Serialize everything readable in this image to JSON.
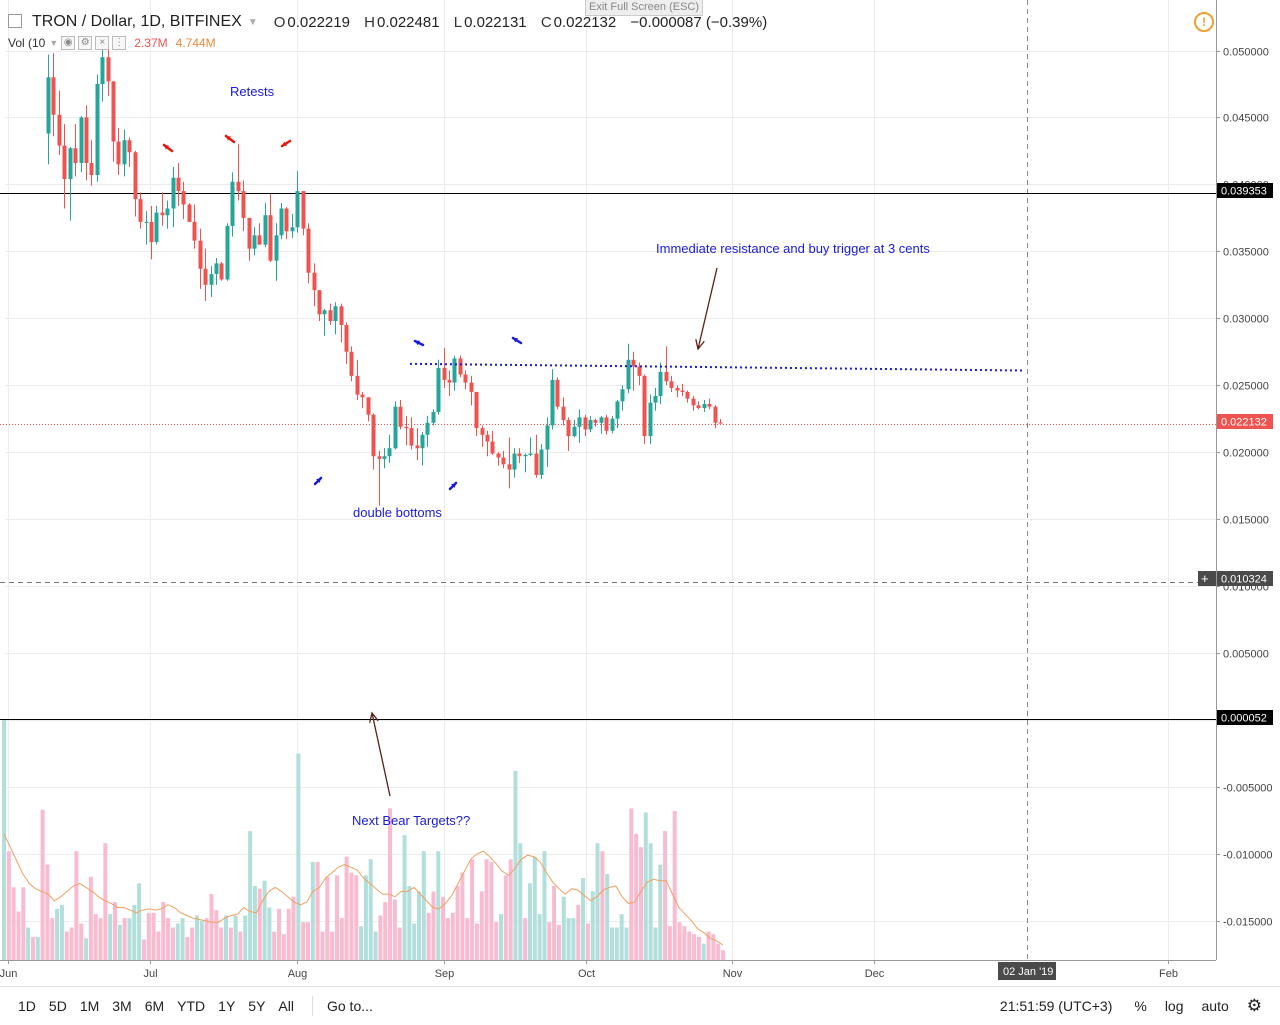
{
  "header": {
    "symbol": "TRON / Dollar, 1D, BITFINEX",
    "open_label": "O",
    "open": "0.022219",
    "high_label": "H",
    "high": "0.022481",
    "low_label": "L",
    "low": "0.022131",
    "close_label": "C",
    "close": "0.022132",
    "change": "−0.000087 (−0.39%)"
  },
  "volume_legend": {
    "label": "Vol (10",
    "value": "2.37M",
    "ma_value": "4.744M"
  },
  "exit_fullscreen": "Exit Full Screen (ESC)",
  "annotations": {
    "retests": "Retests",
    "resistance": "Immediate resistance and buy trigger at 3 cents",
    "double_bottoms": "double bottoms",
    "bear_targets": "Next Bear Targets??"
  },
  "price_labels": {
    "level1": "0.039353",
    "current": "0.022132",
    "crosshair": "0.010324",
    "level2": "0.000052"
  },
  "time_labels": {
    "crosshair_date": "02 Jan '19"
  },
  "bottom_bar": {
    "ranges": [
      "1D",
      "5D",
      "1M",
      "3M",
      "6M",
      "YTD",
      "1Y",
      "5Y",
      "All"
    ],
    "goto": "Go to...",
    "clock": "21:51:59 (UTC+3)",
    "percent": "%",
    "log": "log",
    "auto": "auto"
  },
  "colors": {
    "up": "#26a69a",
    "down": "#ef5350",
    "vol_up": "#b2dfdb",
    "vol_down": "#f8bbd0",
    "vol_ma": "#f0a060",
    "annotation": "#1a1adb",
    "arrow_red": "#e8160c",
    "arrow_blue": "#1a1adb",
    "arrow_dark": "#5b1f14"
  },
  "chart_data": {
    "type": "candlestick",
    "title": "TRON / Dollar, 1D, BITFINEX",
    "y_axis": {
      "min": -0.018,
      "max": 0.0535,
      "ticks": [
        "0.050000",
        "0.045000",
        "0.040000",
        "0.035000",
        "0.030000",
        "0.025000",
        "0.020000",
        "0.015000",
        "0.010000",
        "0.005000",
        "0.000000",
        "-0.005000",
        "-0.010000",
        "-0.015000"
      ],
      "tick_values": [
        0.05,
        0.045,
        0.04,
        0.035,
        0.03,
        0.025,
        0.02,
        0.015,
        0.01,
        0.005,
        0.0,
        -0.005,
        -0.01,
        -0.015
      ]
    },
    "x_axis": {
      "labels": [
        "Jun",
        "Jul",
        "Aug",
        "Sep",
        "Oct",
        "Nov",
        "Dec",
        "Feb"
      ],
      "label_days": [
        0,
        30,
        61,
        92,
        122,
        153,
        183,
        245
      ],
      "range_days": [
        0,
        257
      ]
    },
    "horizontal_lines": [
      {
        "value": 0.039353,
        "style": "solid"
      },
      {
        "value": 5.2e-05,
        "style": "solid"
      },
      {
        "value": 0.010324,
        "style": "dashed"
      },
      {
        "value": 0.022132,
        "style": "dotted"
      }
    ],
    "resistance_trendline": {
      "from": [
        86,
        0.0266
      ],
      "to": [
        215,
        0.0261
      ]
    },
    "candles_ohlc": [
      [
        0.0438,
        0.0497,
        0.0415,
        0.048
      ],
      [
        0.048,
        0.0498,
        0.0436,
        0.0452
      ],
      [
        0.0452,
        0.047,
        0.0422,
        0.0429
      ],
      [
        0.0429,
        0.0445,
        0.0382,
        0.0404
      ],
      [
        0.0404,
        0.0428,
        0.0373,
        0.0427
      ],
      [
        0.0427,
        0.0445,
        0.0406,
        0.0416
      ],
      [
        0.0416,
        0.0451,
        0.0409,
        0.045
      ],
      [
        0.045,
        0.0459,
        0.0403,
        0.0416
      ],
      [
        0.0416,
        0.0433,
        0.0399,
        0.0407
      ],
      [
        0.0407,
        0.0482,
        0.0402,
        0.0475
      ],
      [
        0.0475,
        0.0501,
        0.0462,
        0.0495
      ],
      [
        0.0495,
        0.0505,
        0.0466,
        0.0477
      ],
      [
        0.0477,
        0.0477,
        0.0417,
        0.0432
      ],
      [
        0.0432,
        0.0442,
        0.0407,
        0.0415
      ],
      [
        0.0415,
        0.0441,
        0.0406,
        0.0433
      ],
      [
        0.0433,
        0.0435,
        0.0413,
        0.0424
      ],
      [
        0.0424,
        0.0425,
        0.0376,
        0.0389
      ],
      [
        0.0389,
        0.0394,
        0.0367,
        0.0372
      ],
      [
        0.0372,
        0.038,
        0.0355,
        0.0372
      ],
      [
        0.0372,
        0.0384,
        0.0344,
        0.0357
      ],
      [
        0.0357,
        0.0384,
        0.0355,
        0.0379
      ],
      [
        0.0379,
        0.0394,
        0.0369,
        0.0377
      ],
      [
        0.0377,
        0.0388,
        0.0367,
        0.0382
      ],
      [
        0.0382,
        0.0413,
        0.0368,
        0.0405
      ],
      [
        0.0405,
        0.0416,
        0.0384,
        0.0395
      ],
      [
        0.0395,
        0.0402,
        0.0374,
        0.0385
      ],
      [
        0.0385,
        0.0386,
        0.0372,
        0.0372
      ],
      [
        0.0372,
        0.0385,
        0.0352,
        0.0358
      ],
      [
        0.0358,
        0.0367,
        0.0322,
        0.0337
      ],
      [
        0.0337,
        0.0352,
        0.0313,
        0.0325
      ],
      [
        0.0325,
        0.0339,
        0.0316,
        0.0333
      ],
      [
        0.0333,
        0.0345,
        0.0325,
        0.0341
      ],
      [
        0.0341,
        0.0342,
        0.0328,
        0.0329
      ],
      [
        0.0329,
        0.0371,
        0.0328,
        0.0369
      ],
      [
        0.0369,
        0.0409,
        0.0361,
        0.0402
      ],
      [
        0.0402,
        0.043,
        0.0388,
        0.0395
      ],
      [
        0.0395,
        0.0403,
        0.0365,
        0.0375
      ],
      [
        0.0375,
        0.0375,
        0.0343,
        0.0352
      ],
      [
        0.0352,
        0.0368,
        0.0347,
        0.0362
      ],
      [
        0.0362,
        0.0371,
        0.0355,
        0.0355
      ],
      [
        0.0355,
        0.0386,
        0.0353,
        0.0377
      ],
      [
        0.0377,
        0.0393,
        0.0342,
        0.0343
      ],
      [
        0.0343,
        0.0371,
        0.0328,
        0.0362
      ],
      [
        0.0362,
        0.0386,
        0.0359,
        0.0382
      ],
      [
        0.0382,
        0.0383,
        0.0359,
        0.0365
      ],
      [
        0.0365,
        0.0378,
        0.036,
        0.0368
      ],
      [
        0.0368,
        0.041,
        0.0364,
        0.0395
      ],
      [
        0.0395,
        0.0395,
        0.0362,
        0.0367
      ],
      [
        0.0367,
        0.0371,
        0.0326,
        0.0334
      ],
      [
        0.0334,
        0.0341,
        0.0309,
        0.0321
      ],
      [
        0.0321,
        0.0321,
        0.0298,
        0.0303
      ],
      [
        0.0303,
        0.0307,
        0.0287,
        0.0306
      ],
      [
        0.0306,
        0.0311,
        0.0295,
        0.0298
      ],
      [
        0.0298,
        0.0312,
        0.0288,
        0.0309
      ],
      [
        0.0309,
        0.0311,
        0.0282,
        0.0295
      ],
      [
        0.0295,
        0.0297,
        0.0266,
        0.0275
      ],
      [
        0.0275,
        0.0279,
        0.0253,
        0.0257
      ],
      [
        0.0257,
        0.0269,
        0.0239,
        0.0243
      ],
      [
        0.0243,
        0.0245,
        0.0233,
        0.0241
      ],
      [
        0.0241,
        0.0241,
        0.0223,
        0.0228
      ],
      [
        0.0228,
        0.0229,
        0.0187,
        0.0197
      ],
      [
        0.0197,
        0.0201,
        0.016,
        0.0195
      ],
      [
        0.0195,
        0.0203,
        0.0188,
        0.0197
      ],
      [
        0.0197,
        0.0213,
        0.0192,
        0.0203
      ],
      [
        0.0203,
        0.0238,
        0.0202,
        0.0234
      ],
      [
        0.0234,
        0.0239,
        0.0217,
        0.0219
      ],
      [
        0.0219,
        0.0227,
        0.0205,
        0.0218
      ],
      [
        0.0218,
        0.0226,
        0.0202,
        0.0205
      ],
      [
        0.0205,
        0.0218,
        0.0194,
        0.0203
      ],
      [
        0.0203,
        0.0215,
        0.019,
        0.0213
      ],
      [
        0.0213,
        0.0227,
        0.0204,
        0.0222
      ],
      [
        0.0222,
        0.0232,
        0.022,
        0.023
      ],
      [
        0.023,
        0.0269,
        0.0228,
        0.0263
      ],
      [
        0.0263,
        0.0278,
        0.0248,
        0.0254
      ],
      [
        0.0254,
        0.0261,
        0.0242,
        0.0252
      ],
      [
        0.0252,
        0.0272,
        0.0246,
        0.027
      ],
      [
        0.027,
        0.0272,
        0.0256,
        0.0258
      ],
      [
        0.0258,
        0.0261,
        0.0247,
        0.0252
      ],
      [
        0.0252,
        0.0257,
        0.0235,
        0.0245
      ],
      [
        0.0245,
        0.0245,
        0.0212,
        0.0218
      ],
      [
        0.0218,
        0.022,
        0.0204,
        0.0213
      ],
      [
        0.0213,
        0.0216,
        0.0197,
        0.0208
      ],
      [
        0.0208,
        0.0216,
        0.0198,
        0.0199
      ],
      [
        0.0199,
        0.02,
        0.019,
        0.0196
      ],
      [
        0.0196,
        0.0201,
        0.0188,
        0.0191
      ],
      [
        0.0191,
        0.0211,
        0.0173,
        0.0187
      ],
      [
        0.0187,
        0.0203,
        0.0181,
        0.0199
      ],
      [
        0.0199,
        0.0203,
        0.0192,
        0.0197
      ],
      [
        0.0197,
        0.0199,
        0.0185,
        0.0198
      ],
      [
        0.0198,
        0.0211,
        0.0197,
        0.0199
      ],
      [
        0.0199,
        0.0213,
        0.0181,
        0.0183
      ],
      [
        0.0183,
        0.0206,
        0.018,
        0.0202
      ],
      [
        0.0202,
        0.0226,
        0.0189,
        0.022
      ],
      [
        0.022,
        0.0262,
        0.0217,
        0.0254
      ],
      [
        0.0254,
        0.0256,
        0.0232,
        0.0234
      ],
      [
        0.0234,
        0.0241,
        0.022,
        0.0224
      ],
      [
        0.0224,
        0.0226,
        0.0201,
        0.0212
      ],
      [
        0.0212,
        0.0224,
        0.0211,
        0.0219
      ],
      [
        0.0219,
        0.0232,
        0.0207,
        0.0226
      ],
      [
        0.0226,
        0.0228,
        0.0212,
        0.0217
      ],
      [
        0.0217,
        0.0227,
        0.0215,
        0.0224
      ],
      [
        0.0224,
        0.0225,
        0.0219,
        0.0222
      ],
      [
        0.0222,
        0.0227,
        0.0214,
        0.0226
      ],
      [
        0.0226,
        0.0228,
        0.0213,
        0.0216
      ],
      [
        0.0216,
        0.0227,
        0.0214,
        0.0225
      ],
      [
        0.0225,
        0.0239,
        0.0218,
        0.0238
      ],
      [
        0.0238,
        0.025,
        0.0231,
        0.0247
      ],
      [
        0.0247,
        0.0281,
        0.0244,
        0.0269
      ],
      [
        0.0269,
        0.0275,
        0.0246,
        0.0264
      ],
      [
        0.0264,
        0.0267,
        0.025,
        0.0257
      ],
      [
        0.0257,
        0.0258,
        0.0206,
        0.0212
      ],
      [
        0.0212,
        0.0243,
        0.0206,
        0.0237
      ],
      [
        0.0237,
        0.0248,
        0.0231,
        0.0242
      ],
      [
        0.0242,
        0.0267,
        0.0236,
        0.026
      ],
      [
        0.026,
        0.0279,
        0.025,
        0.0253
      ],
      [
        0.0253,
        0.0257,
        0.0245,
        0.0248
      ],
      [
        0.0248,
        0.025,
        0.0241,
        0.0246
      ],
      [
        0.0246,
        0.0251,
        0.0242,
        0.0245
      ],
      [
        0.0245,
        0.0246,
        0.0237,
        0.024
      ],
      [
        0.024,
        0.0242,
        0.0231,
        0.0235
      ],
      [
        0.0235,
        0.0238,
        0.0232,
        0.0233
      ],
      [
        0.0233,
        0.0239,
        0.023,
        0.0236
      ],
      [
        0.0236,
        0.024,
        0.0232,
        0.0234
      ],
      [
        0.0234,
        0.0235,
        0.0218,
        0.0222
      ],
      [
        0.022219,
        0.022481,
        0.022131,
        0.022132
      ]
    ],
    "volumes": [
      0.0,
      -0.0098,
      -0.0125,
      -0.0143,
      -0.0125,
      -0.0155,
      -0.0162,
      -0.0162,
      -0.0067,
      -0.0108,
      -0.0148,
      -0.0141,
      -0.0138,
      -0.0158,
      -0.0155,
      -0.0098,
      -0.0152,
      -0.0163,
      -0.0117,
      -0.0145,
      -0.0148,
      -0.0092,
      -0.0145,
      -0.0136,
      -0.0153,
      -0.0148,
      -0.0148,
      -0.0138,
      -0.0122,
      -0.0164,
      -0.0144,
      -0.0144,
      -0.0158,
      -0.0136,
      -0.0148,
      -0.0155,
      -0.0152,
      -0.0148,
      -0.0162,
      -0.0155,
      -0.0146,
      -0.015,
      -0.0148,
      -0.013,
      -0.0142,
      -0.0155,
      -0.0146,
      -0.0155,
      -0.0146,
      -0.0158,
      -0.0146,
      -0.0083,
      -0.0124,
      -0.0126,
      -0.012,
      -0.014,
      -0.0158,
      -0.0141,
      -0.016,
      -0.0141,
      -0.0132,
      -0.0025,
      -0.0151,
      -0.0151,
      -0.0106,
      -0.0106,
      -0.0158,
      -0.0117,
      -0.0158,
      -0.0116,
      -0.0148,
      -0.0102,
      -0.0114,
      -0.0116,
      -0.0154,
      -0.0116,
      -0.0104,
      -0.0158,
      -0.0146,
      -0.0136,
      -0.0066,
      -0.0134,
      -0.0155,
      -0.0086,
      -0.0124,
      -0.0152,
      -0.0128,
      -0.0098,
      -0.0144,
      -0.0128,
      -0.0098,
      -0.0132,
      -0.0148,
      -0.0144,
      -0.0124,
      -0.0114,
      -0.0148,
      -0.0104,
      -0.0152,
      -0.0128,
      -0.0104,
      -0.0106,
      -0.0151,
      -0.0145,
      -0.0116,
      -0.0104,
      -0.0038,
      -0.0092,
      -0.0148,
      -0.0122,
      -0.0102,
      -0.0145,
      -0.0098,
      -0.0151,
      -0.0124,
      -0.0153,
      -0.0132,
      -0.0148,
      -0.0148,
      -0.0138,
      -0.0118,
      -0.0152,
      -0.0128,
      -0.0092,
      -0.0098,
      -0.0115,
      -0.0155,
      -0.0155,
      -0.0145,
      -0.0155,
      -0.0066,
      -0.0085,
      -0.0095,
      -0.0069,
      -0.0092,
      -0.0155,
      -0.0108,
      -0.0083,
      -0.0154,
      -0.0068,
      -0.0151,
      -0.0154,
      -0.0158,
      -0.016,
      -0.0162,
      -0.0167,
      -0.0158,
      -0.016,
      -0.0167,
      -0.0172
    ],
    "volume_ma": [
      -0.0085,
      -0.0095,
      -0.0105,
      -0.0115,
      -0.0122,
      -0.0126,
      -0.0128,
      -0.013,
      -0.0135,
      -0.0132,
      -0.0128,
      -0.0124,
      -0.0122,
      -0.0125,
      -0.0128,
      -0.0132,
      -0.0135,
      -0.0137,
      -0.014,
      -0.014,
      -0.0142,
      -0.0144,
      -0.0142,
      -0.0141,
      -0.0142,
      -0.0141,
      -0.0138,
      -0.014,
      -0.0144,
      -0.0146,
      -0.0148,
      -0.0149,
      -0.015,
      -0.0151,
      -0.0151,
      -0.0148,
      -0.0146,
      -0.0145,
      -0.014,
      -0.0143,
      -0.0144,
      -0.0135,
      -0.0128,
      -0.0125,
      -0.0128,
      -0.0132,
      -0.0136,
      -0.0138,
      -0.0136,
      -0.0128,
      -0.0125,
      -0.0118,
      -0.0114,
      -0.011,
      -0.0108,
      -0.011,
      -0.0112,
      -0.0118,
      -0.0122,
      -0.0126,
      -0.013,
      -0.013,
      -0.0132,
      -0.0128,
      -0.0128,
      -0.0125,
      -0.013,
      -0.0135,
      -0.014,
      -0.0141,
      -0.0137,
      -0.0131,
      -0.0122,
      -0.0113,
      -0.0104,
      -0.01,
      -0.0098,
      -0.0102,
      -0.0107,
      -0.0113,
      -0.0116,
      -0.0111,
      -0.0104,
      -0.0101,
      -0.0102,
      -0.0106,
      -0.0114,
      -0.0121,
      -0.0126,
      -0.013,
      -0.0126,
      -0.0127,
      -0.0131,
      -0.0135,
      -0.0132,
      -0.0127,
      -0.0125,
      -0.0124,
      -0.0132,
      -0.0137,
      -0.0136,
      -0.0128,
      -0.0121,
      -0.0119,
      -0.012,
      -0.012,
      -0.013,
      -0.014,
      -0.0145,
      -0.015,
      -0.0156,
      -0.0159,
      -0.0163,
      -0.0165,
      -0.0168
    ]
  }
}
